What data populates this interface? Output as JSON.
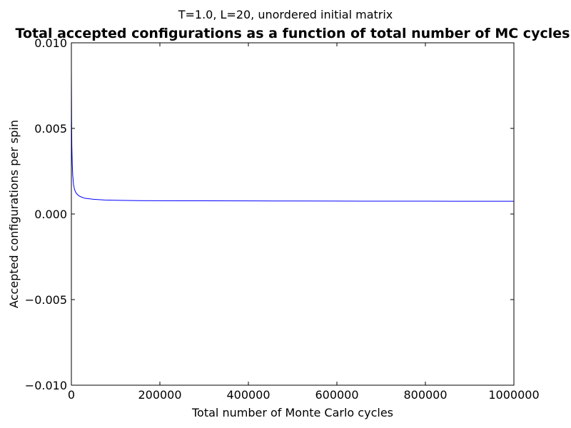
{
  "chart_data": {
    "type": "line",
    "suptitle": "T=1.0, L=20, unordered initial matrix",
    "title": "Total accepted configurations as a function of total number of MC cycles",
    "xlabel": "Total number of Monte Carlo cycles",
    "ylabel": "Accepted configurations per spin",
    "xlim": [
      0,
      1000000
    ],
    "ylim": [
      -0.01,
      0.01
    ],
    "xticks": [
      0,
      200000,
      400000,
      600000,
      800000,
      1000000
    ],
    "xtick_labels": [
      "0",
      "200000",
      "400000",
      "600000",
      "800000",
      "1000000"
    ],
    "yticks": [
      -0.01,
      -0.005,
      0.0,
      0.005,
      0.01
    ],
    "ytick_labels": [
      "−0.010",
      "−0.005",
      "0.000",
      "0.005",
      "0.010"
    ],
    "grid": false,
    "legend": "none",
    "series": [
      {
        "color": "#0000ff",
        "x": [
          0,
          500,
          1000,
          2000,
          3000,
          5000,
          7000,
          10000,
          15000,
          20000,
          30000,
          50000,
          75000,
          100000,
          150000,
          200000,
          300000,
          400000,
          500000,
          600000,
          700000,
          800000,
          900000,
          1000000
        ],
        "y": [
          0.0085,
          0.0055,
          0.004,
          0.0029,
          0.0023,
          0.0017,
          0.00145,
          0.00125,
          0.0011,
          0.00102,
          0.00092,
          0.00086,
          0.00082,
          0.0008,
          0.00078,
          0.000775,
          0.00077,
          0.000765,
          0.00076,
          0.000755,
          0.00075,
          0.000748,
          0.000746,
          0.000745
        ]
      }
    ]
  }
}
